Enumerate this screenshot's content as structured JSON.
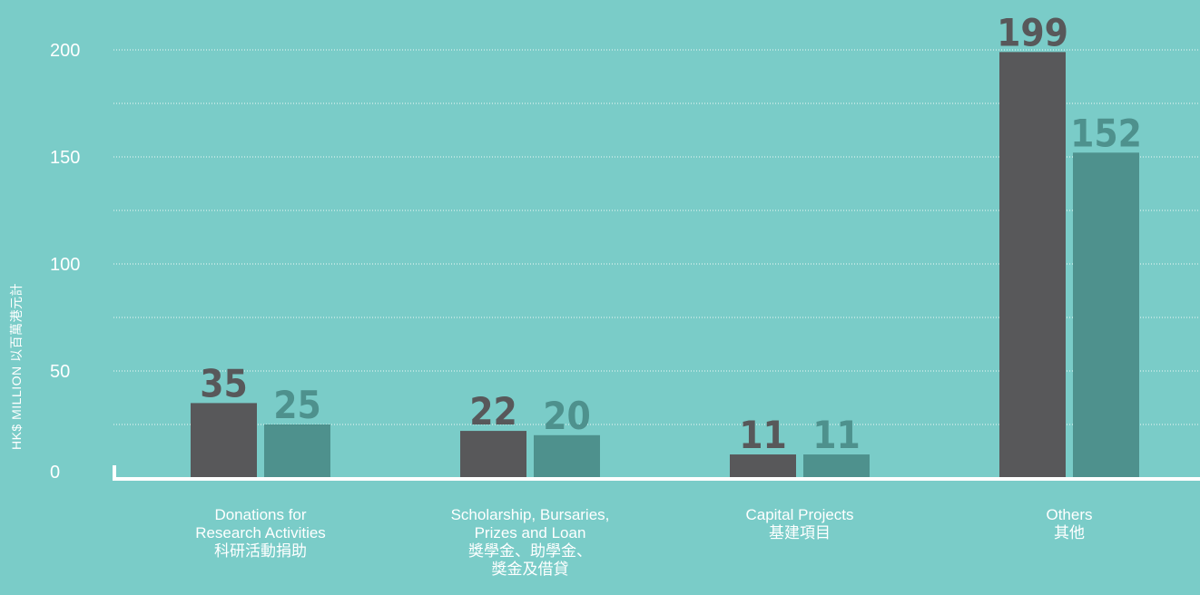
{
  "chart_data": {
    "type": "bar",
    "title": "",
    "xlabel": "",
    "ylabel": "HK$ MILLION 以百萬港元計",
    "ylim": [
      0,
      200
    ],
    "y_ticks": [
      "0",
      "50",
      "100",
      "150",
      "200"
    ],
    "grid": true,
    "categories": [
      [
        "Donations for",
        "Research Activities",
        "科研活動捐助"
      ],
      [
        "Scholarship, Bursaries,",
        "Prizes and Loan",
        "獎學金、助學金、",
        "獎金及借貸"
      ],
      [
        "Capital Projects",
        "基建項目"
      ],
      [
        "Others",
        "其他"
      ]
    ],
    "series": [
      {
        "values": [
          35,
          22,
          11,
          199
        ],
        "color": "#58585a"
      },
      {
        "values": [
          25,
          20,
          11,
          152
        ],
        "color": "#4e918d"
      }
    ],
    "labels": [
      [
        "35",
        "22",
        "11",
        "199"
      ],
      [
        "25",
        "20",
        "11",
        "152"
      ]
    ]
  },
  "colors": {
    "background": "#7accc8",
    "axis": "#ffffff",
    "grid": "#ffffff"
  }
}
